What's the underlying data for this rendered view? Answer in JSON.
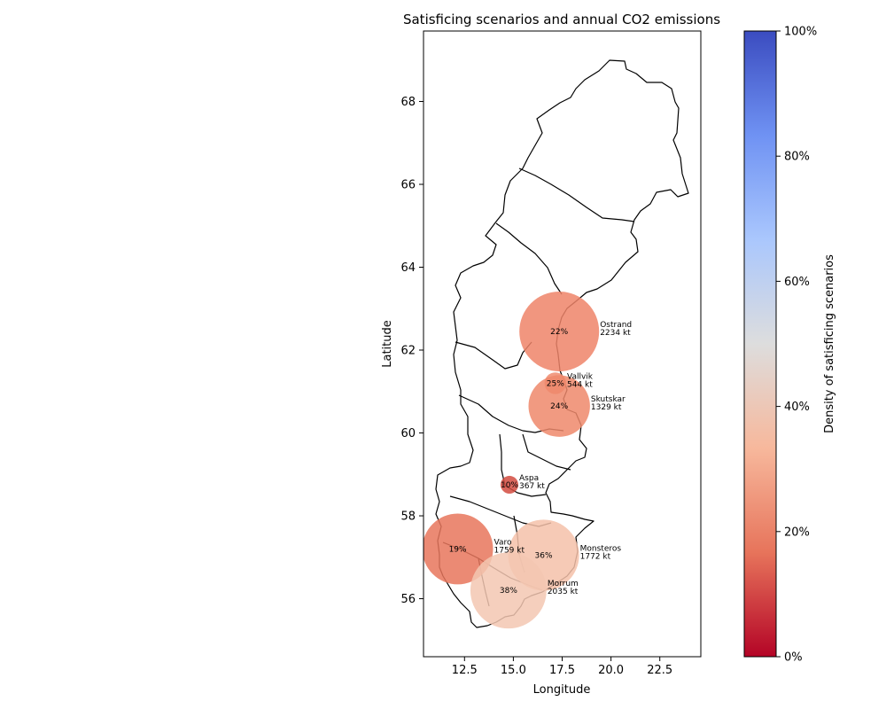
{
  "chart_data": {
    "type": "scatter",
    "title": "Satisficing scenarios and annual CO2 emissions",
    "xlabel": "Longitude",
    "ylabel": "Latitude",
    "xlim": [
      10.4,
      24.6
    ],
    "ylim": [
      54.6,
      69.7
    ],
    "xticks": [
      "12.5",
      "15.0",
      "17.5",
      "20.0",
      "22.5"
    ],
    "yticks": [
      "56",
      "58",
      "60",
      "62",
      "64",
      "66",
      "68"
    ],
    "colorbar": {
      "label": "Density of satisficing scenarios",
      "ticks": [
        "0%",
        "20%",
        "40%",
        "60%",
        "80%",
        "100%"
      ],
      "colormap": "coolwarm_r",
      "stops": [
        "#b40426",
        "#e7745b",
        "#f7b89c",
        "#dddddd",
        "#aac7fd",
        "#6f92f3",
        "#3b4cc0"
      ]
    },
    "background_map": "Sweden county borders",
    "points": [
      {
        "name": "Ostrand",
        "lon": 17.35,
        "lat": 62.45,
        "emissions": "2234 kt",
        "emissions_kt": 2234,
        "density_pct": "22%",
        "density": 0.22,
        "color": "#ee8468"
      },
      {
        "name": "Vallvik",
        "lon": 17.15,
        "lat": 61.2,
        "emissions": "544 kt",
        "emissions_kt": 544,
        "density_pct": "25%",
        "density": 0.25,
        "color": "#f08b6e"
      },
      {
        "name": "Skutskar",
        "lon": 17.35,
        "lat": 60.65,
        "emissions": "1329 kt",
        "emissions_kt": 1329,
        "density_pct": "24%",
        "density": 0.24,
        "color": "#ef886b"
      },
      {
        "name": "Aspa",
        "lon": 14.8,
        "lat": 58.75,
        "emissions": "367 kt",
        "emissions_kt": 367,
        "density_pct": "10%",
        "density": 0.1,
        "color": "#d24b40"
      },
      {
        "name": "Varo",
        "lon": 12.15,
        "lat": 57.2,
        "emissions": "1759 kt",
        "emissions_kt": 1759,
        "density_pct": "19%",
        "density": 0.19,
        "color": "#e8765c"
      },
      {
        "name": "Monsteros",
        "lon": 16.55,
        "lat": 57.05,
        "emissions": "1772 kt",
        "emissions_kt": 1772,
        "density_pct": "36%",
        "density": 0.36,
        "color": "#f5c1a9"
      },
      {
        "name": "Morrum",
        "lon": 14.75,
        "lat": 56.2,
        "emissions": "2035 kt",
        "emissions_kt": 2035,
        "density_pct": "38%",
        "density": 0.38,
        "color": "#f3c7b1"
      }
    ]
  }
}
